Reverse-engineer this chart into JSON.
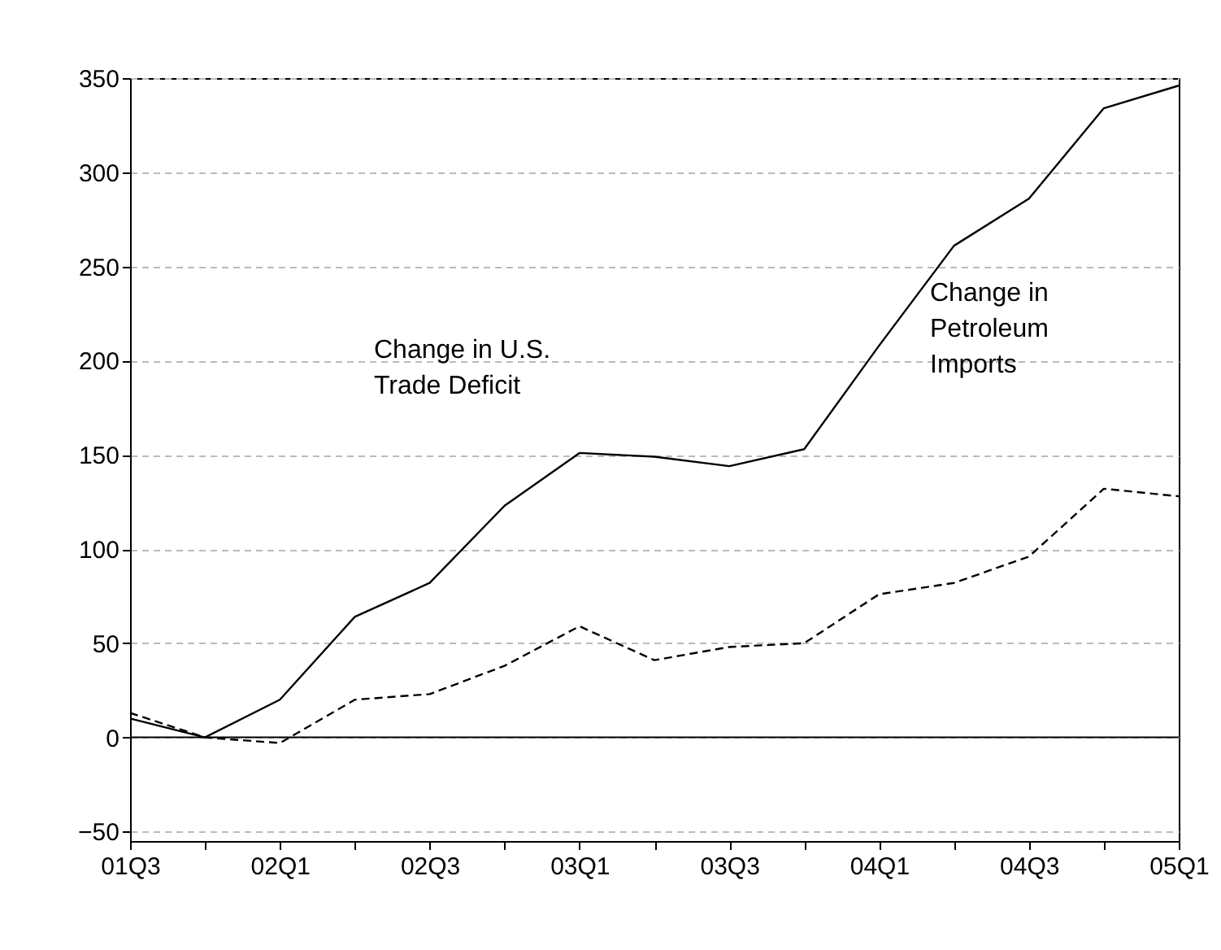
{
  "chart_data": {
    "type": "line",
    "categories": [
      "01Q3",
      null,
      "02Q1",
      null,
      "02Q3",
      null,
      "03Q1",
      null,
      "03Q3",
      null,
      "04Q1",
      null,
      "04Q3",
      null,
      "05Q1"
    ],
    "series": [
      {
        "color": "#000000",
        "line_style": "solid",
        "values": [
          10,
          0,
          20,
          64,
          82,
          123,
          151,
          149,
          144,
          153,
          208,
          261,
          286,
          334,
          346
        ]
      },
      {
        "color": "#000000",
        "line_style": "dashed",
        "values": [
          13,
          0,
          -3,
          20,
          23,
          38,
          59,
          41,
          48,
          50,
          76,
          82,
          96,
          132,
          128
        ]
      }
    ],
    "ylim": [
      -55,
      350
    ],
    "yticks": [
      -50,
      0,
      50,
      100,
      150,
      200,
      250,
      300,
      350
    ],
    "grid": "y",
    "ref_lines": [
      {
        "axis": "y",
        "value": 0,
        "color": "#000000",
        "line_style": "solid"
      }
    ],
    "annotations": [
      "Change in U.S.\nTrade Deficit",
      "Change in\nPetroleum\nImports"
    ]
  }
}
